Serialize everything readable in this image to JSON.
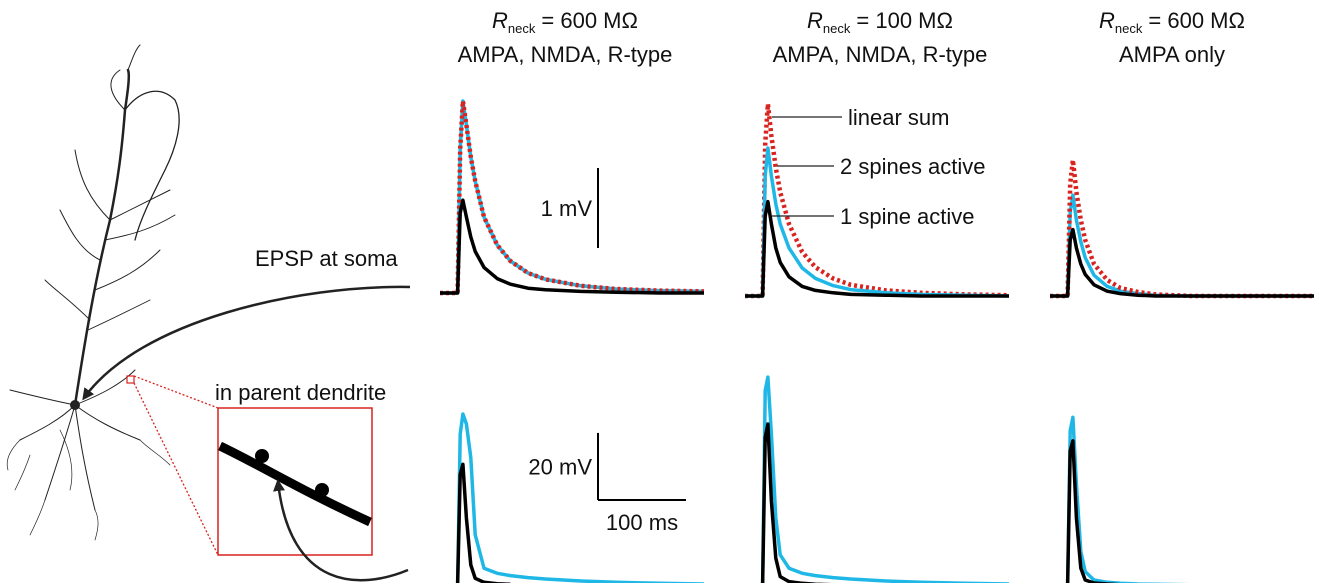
{
  "chart_data": [
    {
      "type": "line",
      "title": {
        "symbol": "R",
        "subscript": "neck",
        "value": "= 600 MΩ"
      },
      "subtitle": "AMPA, NMDA, R-type",
      "row_label": "EPSP at soma",
      "x": [
        -20,
        0,
        3,
        6,
        10,
        15,
        20,
        30,
        45,
        60,
        80,
        100,
        140,
        180,
        230,
        280
      ],
      "xlim": [
        -20,
        280
      ],
      "ylim": [
        0,
        2.6
      ],
      "scale_bars": [
        {
          "axis": "y",
          "value": 1,
          "label": "1 mV"
        }
      ],
      "series": [
        {
          "color": "#1fb8e6",
          "values": [
            0,
            0,
            1.8,
            2.4,
            2.1,
            1.7,
            1.4,
            0.95,
            0.6,
            0.4,
            0.25,
            0.17,
            0.09,
            0.05,
            0.03,
            0.02
          ]
        },
        {
          "color": "#d9231f",
          "style": "dotted",
          "values": [
            0,
            0,
            1.8,
            2.4,
            2.1,
            1.7,
            1.4,
            0.95,
            0.6,
            0.4,
            0.25,
            0.17,
            0.09,
            0.05,
            0.03,
            0.02
          ]
        },
        {
          "color": "#000000",
          "values": [
            0,
            0,
            1.0,
            1.16,
            0.95,
            0.7,
            0.52,
            0.32,
            0.18,
            0.11,
            0.06,
            0.04,
            0.02,
            0.01,
            0,
            0
          ]
        }
      ]
    },
    {
      "type": "line",
      "title": {
        "symbol": "R",
        "subscript": "neck",
        "value": "= 100 MΩ"
      },
      "subtitle": "AMPA, NMDA, R-type",
      "x": [
        -20,
        0,
        3,
        6,
        10,
        15,
        20,
        30,
        45,
        60,
        80,
        100,
        140,
        180,
        230,
        280
      ],
      "xlim": [
        -20,
        280
      ],
      "ylim": [
        0,
        2.6
      ],
      "series": [
        {
          "name": "linear sum",
          "color": "#d9231f",
          "style": "dotted",
          "values": [
            0,
            0,
            1.9,
            2.4,
            2.0,
            1.6,
            1.3,
            0.9,
            0.55,
            0.36,
            0.22,
            0.14,
            0.07,
            0.04,
            0.02,
            0.01
          ]
        },
        {
          "name": "2 spines active",
          "color": "#1fb8e6",
          "values": [
            0,
            0,
            1.5,
            1.85,
            1.5,
            1.15,
            0.9,
            0.6,
            0.35,
            0.22,
            0.13,
            0.08,
            0.04,
            0.02,
            0.01,
            0
          ]
        },
        {
          "name": "1 spine active",
          "color": "#000000",
          "values": [
            0,
            0,
            1.0,
            1.18,
            0.9,
            0.6,
            0.42,
            0.24,
            0.12,
            0.07,
            0.04,
            0.02,
            0.01,
            0,
            0,
            0
          ]
        }
      ]
    },
    {
      "type": "line",
      "title": {
        "symbol": "R",
        "subscript": "neck",
        "value": "= 600 MΩ"
      },
      "subtitle": "AMPA only",
      "x": [
        -20,
        0,
        3,
        6,
        10,
        15,
        20,
        30,
        45,
        60,
        80,
        100,
        140,
        180,
        230,
        280
      ],
      "xlim": [
        -20,
        280
      ],
      "ylim": [
        0,
        2.6
      ],
      "series": [
        {
          "color": "#1fb8e6",
          "values": [
            0,
            0,
            1.05,
            1.26,
            0.95,
            0.68,
            0.48,
            0.26,
            0.12,
            0.06,
            0.03,
            0.01,
            0,
            0,
            0,
            0
          ]
        },
        {
          "color": "#d9231f",
          "style": "dotted",
          "values": [
            0,
            0,
            1.4,
            1.7,
            1.3,
            0.95,
            0.7,
            0.4,
            0.2,
            0.1,
            0.05,
            0.02,
            0,
            0,
            0,
            0
          ]
        },
        {
          "color": "#000000",
          "values": [
            0,
            0,
            0.7,
            0.83,
            0.6,
            0.4,
            0.27,
            0.14,
            0.06,
            0.03,
            0.01,
            0,
            0,
            0,
            0,
            0
          ]
        }
      ]
    },
    {
      "type": "line",
      "row_label": "in parent dendrite",
      "x": [
        -20,
        0,
        3,
        6,
        10,
        15,
        20,
        30,
        45,
        60,
        80,
        100,
        140,
        180,
        230,
        280
      ],
      "xlim": [
        -20,
        280
      ],
      "ylim": [
        0,
        65
      ],
      "scale_bars": [
        {
          "axis": "y",
          "value": 20,
          "label": "20 mV"
        },
        {
          "axis": "x",
          "value": 100,
          "label": "100 ms"
        }
      ],
      "series": [
        {
          "color": "#1fb8e6",
          "values": [
            0,
            0,
            45,
            51,
            48,
            38,
            15,
            5,
            3.5,
            2.8,
            2.2,
            1.8,
            1.2,
            0.8,
            0.5,
            0.3
          ]
        },
        {
          "color": "#000000",
          "values": [
            0,
            0,
            33,
            36,
            20,
            6,
            2,
            0.8,
            0.4,
            0.2,
            0.1,
            0,
            0,
            0,
            0,
            0
          ]
        }
      ]
    },
    {
      "type": "line",
      "x": [
        -20,
        0,
        3,
        6,
        10,
        15,
        20,
        30,
        45,
        60,
        80,
        100,
        140,
        180,
        230,
        280
      ],
      "xlim": [
        -20,
        280
      ],
      "ylim": [
        0,
        65
      ],
      "series": [
        {
          "color": "#1fb8e6",
          "values": [
            0,
            0,
            58,
            62,
            45,
            20,
            9,
            5,
            3.5,
            2.8,
            2.2,
            1.8,
            1.2,
            0.8,
            0.5,
            0.3
          ]
        },
        {
          "color": "#000000",
          "values": [
            0,
            0,
            44,
            48,
            25,
            8,
            2.5,
            1,
            0.5,
            0.2,
            0.1,
            0,
            0,
            0,
            0,
            0
          ]
        }
      ]
    },
    {
      "type": "line",
      "x": [
        -20,
        0,
        3,
        6,
        10,
        15,
        20,
        30,
        45,
        60,
        80,
        100,
        140,
        180,
        230,
        280
      ],
      "xlim": [
        -20,
        280
      ],
      "ylim": [
        0,
        65
      ],
      "series": [
        {
          "color": "#1fb8e6",
          "values": [
            0,
            0,
            46,
            50,
            30,
            10,
            4,
            1.5,
            0.8,
            0.5,
            0.3,
            0.2,
            0.1,
            0,
            0,
            0
          ]
        },
        {
          "color": "#000000",
          "values": [
            0,
            0,
            40,
            43,
            20,
            5,
            1.5,
            0.6,
            0.3,
            0.1,
            0,
            0,
            0,
            0,
            0,
            0
          ]
        }
      ]
    }
  ]
}
